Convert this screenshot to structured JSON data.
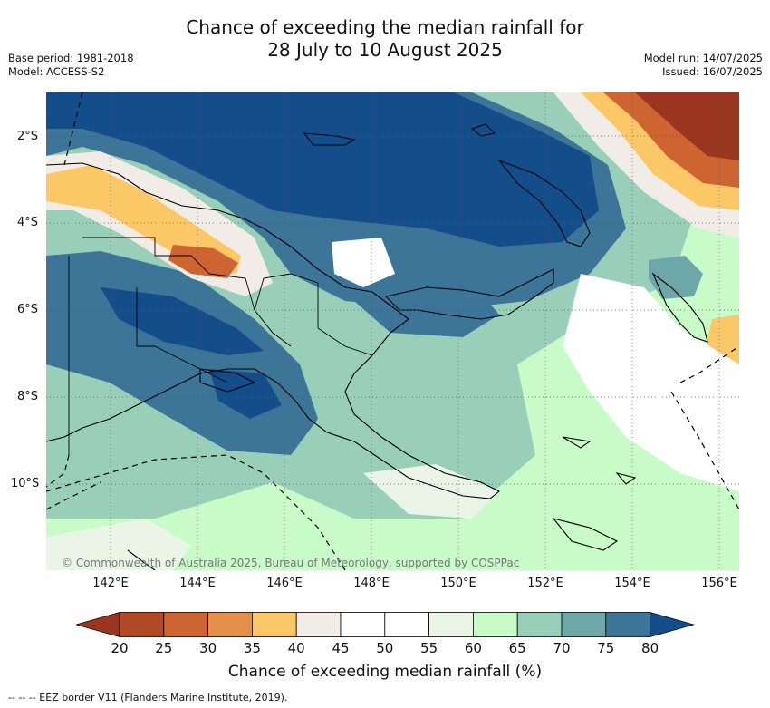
{
  "title_line1": "Chance of exceeding the median rainfall for",
  "title_line2": "28 July to 10 August 2025",
  "base_period": "Base period: 1981-2018",
  "model": "Model: ACCESS-S2",
  "model_run": "Model run: 14/07/2025",
  "issued": "Issued: 16/07/2025",
  "lat_labels": [
    "2°S",
    "4°S",
    "6°S",
    "8°S",
    "10°S"
  ],
  "lon_labels": [
    "142°E",
    "144°E",
    "146°E",
    "148°E",
    "150°E",
    "152°E",
    "154°E",
    "156°E"
  ],
  "credit": "© Commonwealth of Australia 2025, Bureau of Meteorology, supported by COSPPac",
  "colorbar": {
    "ticks": [
      "20",
      "25",
      "30",
      "35",
      "40",
      "45",
      "50",
      "55",
      "60",
      "65",
      "70",
      "75",
      "80"
    ],
    "colors": [
      "#9a3520",
      "#b14a25",
      "#cd6431",
      "#e2904a",
      "#fcc867",
      "#f2ece6",
      "#ffffff",
      "#ffffff",
      "#eaf5e8",
      "#c9fbc9",
      "#99cfb9",
      "#6ea7a8",
      "#3c7598",
      "#134e8a"
    ],
    "label": "Chance of exceeding median rainfall (%)"
  },
  "footer": "--  --  -- EEZ border V11 (Flanders Marine Institute, 2019).",
  "colors": {
    "land_outline": "#000000",
    "grid": "#555555"
  }
}
